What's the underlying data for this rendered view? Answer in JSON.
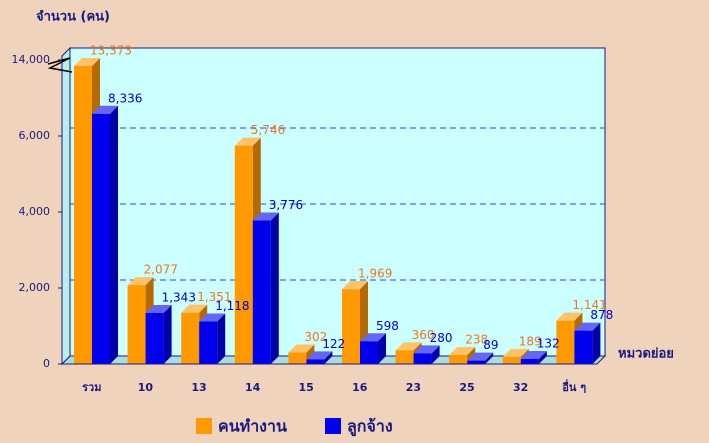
{
  "chart_data": {
    "type": "bar3d",
    "y_axis_label": "จำนวน (คน)",
    "x_axis_label": "หมวดย่อย",
    "categories": [
      "รวม",
      "10",
      "13",
      "14",
      "15",
      "16",
      "23",
      "25",
      "32",
      "อื่น ๆ"
    ],
    "series": [
      {
        "name": "คนทำงาน",
        "color": "#FF9900",
        "label_color": "#E87722",
        "values": [
          13373,
          2077,
          1351,
          5746,
          302,
          1969,
          360,
          238,
          189,
          1141
        ],
        "value_labels": [
          "13,373",
          "2,077",
          "1,351",
          "5,746",
          "302",
          "1,969",
          "360",
          "238",
          "189",
          "1,141"
        ]
      },
      {
        "name": "ลูกจ้าง",
        "color": "#0000EE",
        "label_color": "#0000CC",
        "values": [
          8336,
          1343,
          1118,
          3776,
          122,
          598,
          280,
          89,
          132,
          878
        ],
        "value_labels": [
          "8,336",
          "1,343",
          "1,118",
          "3,776",
          "122",
          "598",
          "280",
          "89",
          "132",
          "878"
        ]
      }
    ],
    "ylim": [
      0,
      14000
    ],
    "yticks": [
      0,
      {
        "value": 2000,
        "label": "2,000"
      },
      {
        "value": 4000,
        "label": "4,000"
      },
      {
        "value": 6000,
        "label": "6,000"
      },
      {
        "value": 14000,
        "label": "14,000"
      }
    ],
    "axis_break": true,
    "grid": true
  }
}
